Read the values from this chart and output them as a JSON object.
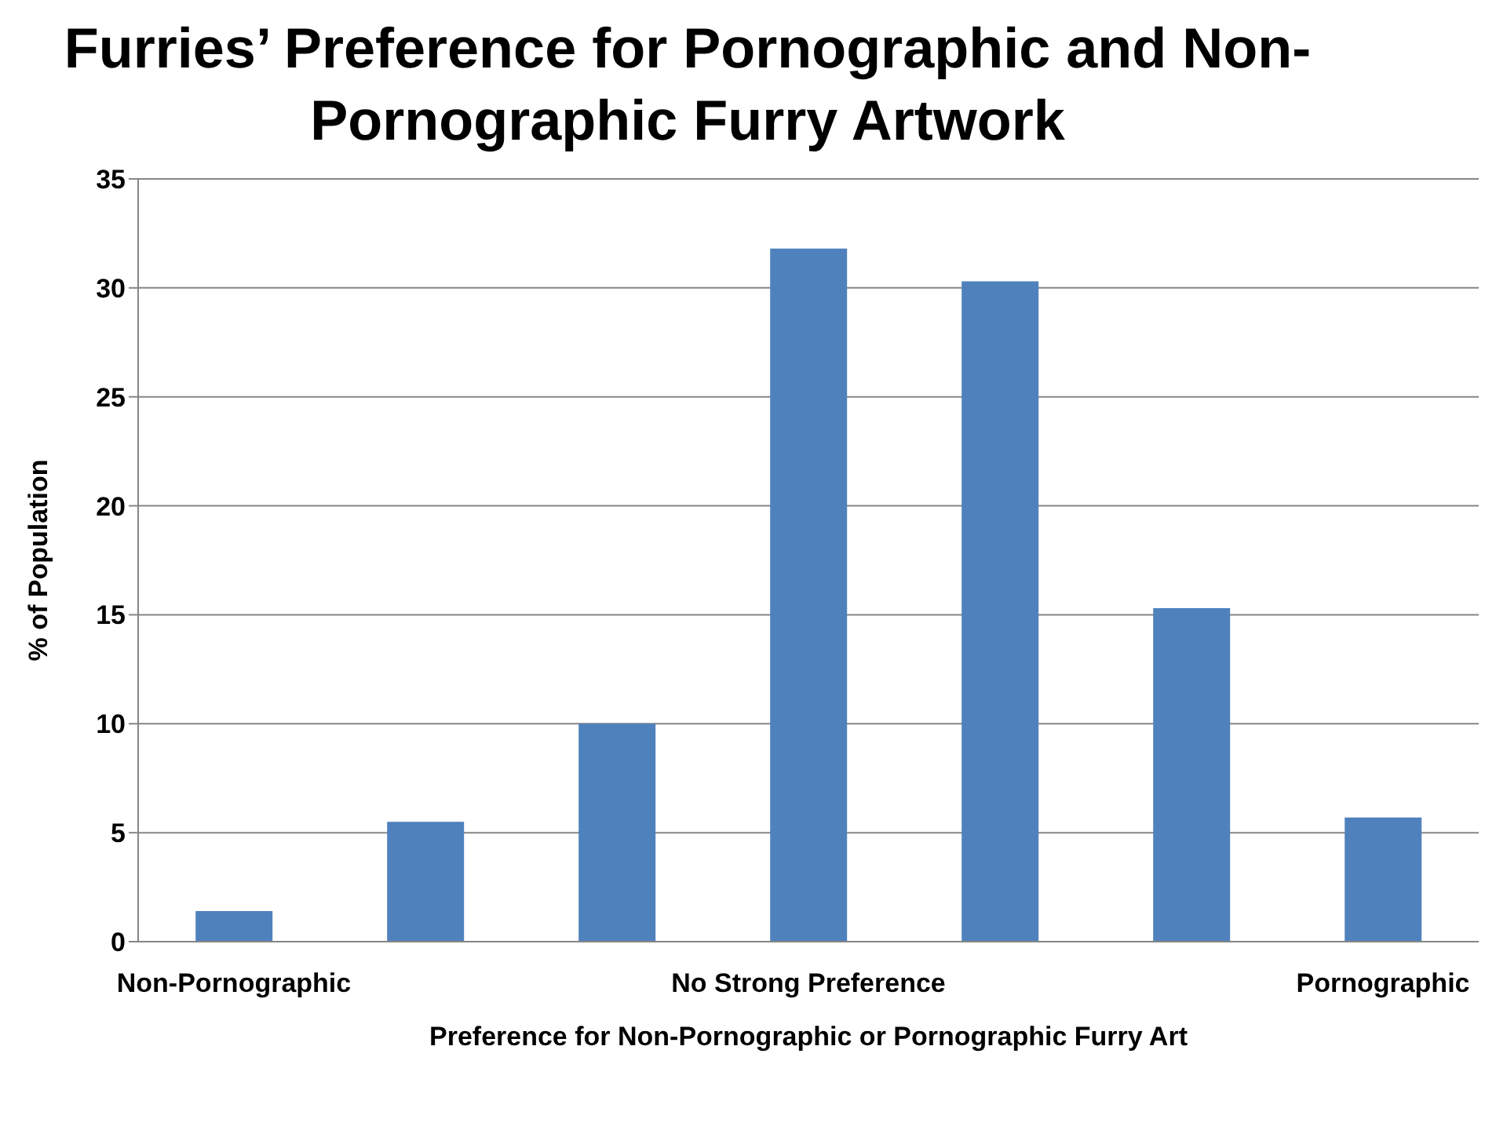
{
  "chart_data": {
    "type": "bar",
    "title": "Furries’ Preference for Pornographic and Non-Pornographic Furry Artwork",
    "xlabel": "Preference for Non-Pornographic or Pornographic Furry Art",
    "ylabel": "% of Population",
    "categories": [
      "Non-Pornographic",
      null,
      null,
      "No Strong Preference",
      null,
      null,
      "Pornographic"
    ],
    "values": [
      1.4,
      5.5,
      10,
      31.8,
      30.3,
      15.3,
      5.7
    ],
    "color": "#4f81bd",
    "ylim": [
      0,
      35
    ],
    "yticks": [
      0,
      5,
      10,
      15,
      20,
      25,
      30,
      35
    ],
    "grid": "y",
    "legend": false
  }
}
